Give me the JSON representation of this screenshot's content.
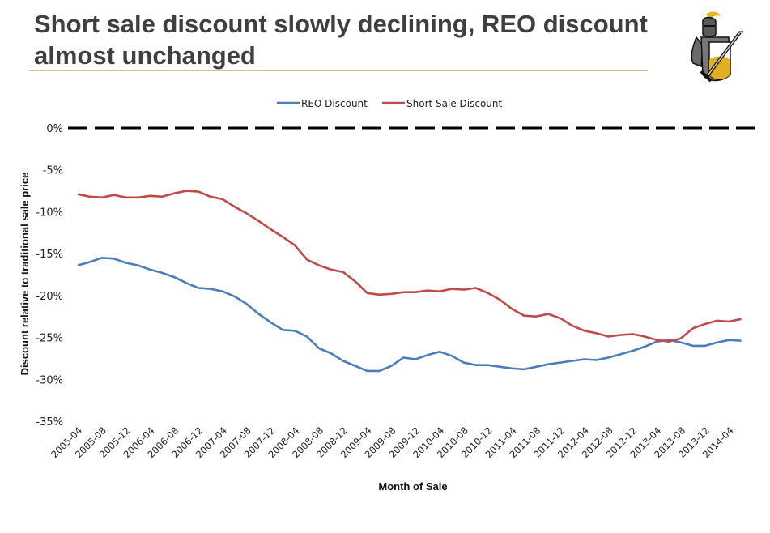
{
  "slide": {
    "title": "Short sale discount slowly declining, REO discount almost unchanged",
    "logo_icon": "knight-logo-icon",
    "logo_tm": "™",
    "accent_color": "#d9c28a"
  },
  "chart_data": {
    "type": "line",
    "title": "",
    "xlabel": "Month of Sale",
    "ylabel": "Discount relative to traditional sale price",
    "ylim": [
      -35,
      0
    ],
    "yticks": [
      0,
      -5,
      -10,
      -15,
      -20,
      -25,
      -30,
      -35
    ],
    "ytick_labels": [
      "0%",
      "-5%",
      "-10%",
      "-15%",
      "-20%",
      "-25%",
      "-30%",
      "-35%"
    ],
    "xtick_labels": [
      "2005-04",
      "2005-08",
      "2005-12",
      "2006-04",
      "2006-08",
      "2006-12",
      "2007-04",
      "2007-08",
      "2007-12",
      "2008-04",
      "2008-08",
      "2008-12",
      "2009-04",
      "2009-08",
      "2009-12",
      "2010-04",
      "2010-08",
      "2010-12",
      "2011-04",
      "2011-08",
      "2011-12",
      "2012-04",
      "2012-08",
      "2012-12",
      "2013-04",
      "2013-08",
      "2013-12",
      "2014-04"
    ],
    "x_start": "2005-04",
    "x_step_months": 2,
    "grid": false,
    "legend_position": "top-center",
    "reference_line": {
      "value": 0,
      "style": "dashed",
      "color": "#000000"
    },
    "series": [
      {
        "name": "REO Discount",
        "color": "#4a7ebb",
        "values": [
          -16.4,
          -16.0,
          -15.5,
          -15.6,
          -16.1,
          -16.4,
          -16.9,
          -17.3,
          -17.8,
          -18.5,
          -19.1,
          -19.2,
          -19.5,
          -20.1,
          -21.0,
          -22.2,
          -23.2,
          -24.1,
          -24.2,
          -24.9,
          -26.3,
          -26.9,
          -27.8,
          -28.4,
          -29.0,
          -29.0,
          -28.4,
          -27.4,
          -27.6,
          -27.1,
          -26.7,
          -27.2,
          -28.0,
          -28.3,
          -28.3,
          -28.5,
          -28.7,
          -28.8,
          -28.5,
          -28.2,
          -28.0,
          -27.8,
          -27.6,
          -27.7,
          -27.4,
          -27.0,
          -26.6,
          -26.1,
          -25.5,
          -25.3,
          -25.6,
          -26.0,
          -26.0,
          -25.6,
          -25.3,
          -25.4
        ]
      },
      {
        "name": "Short Sale Discount",
        "color": "#be4b48",
        "values": [
          -7.9,
          -8.2,
          -8.3,
          -8.0,
          -8.3,
          -8.3,
          -8.1,
          -8.2,
          -7.8,
          -7.5,
          -7.6,
          -8.2,
          -8.5,
          -9.4,
          -10.2,
          -11.1,
          -12.1,
          -13.0,
          -14.0,
          -15.7,
          -16.4,
          -16.9,
          -17.2,
          -18.3,
          -19.7,
          -19.9,
          -19.8,
          -19.6,
          -19.6,
          -19.4,
          -19.5,
          -19.2,
          -19.3,
          -19.1,
          -19.7,
          -20.5,
          -21.6,
          -22.4,
          -22.5,
          -22.2,
          -22.7,
          -23.6,
          -24.2,
          -24.5,
          -24.9,
          -24.7,
          -24.6,
          -24.9,
          -25.3,
          -25.5,
          -25.1,
          -23.9,
          -23.4,
          -23.0,
          -23.1,
          -22.8
        ]
      }
    ]
  }
}
